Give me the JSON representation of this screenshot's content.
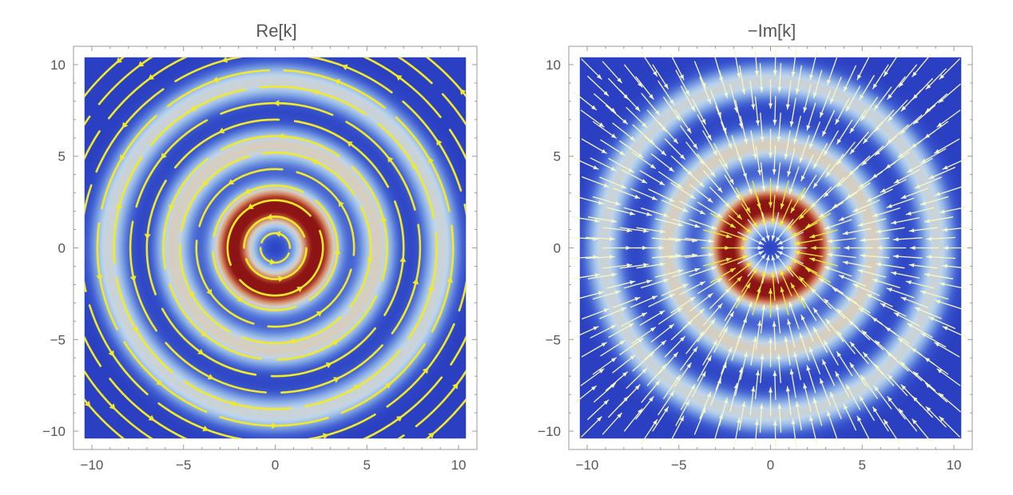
{
  "chart_data": [
    {
      "type": "heatmap",
      "subtype": "density-with-stream-field",
      "title": "Re[k]",
      "xlim": [
        -11,
        11
      ],
      "ylim": [
        -11,
        11
      ],
      "data_range": [
        -10.4,
        10.4
      ],
      "xticks": [
        -10,
        -5,
        0,
        5,
        10
      ],
      "yticks": [
        -10,
        -5,
        0,
        5,
        10
      ],
      "xtick_labels": [
        "−10",
        "−5",
        "0",
        "5",
        "10"
      ],
      "ytick_labels": [
        "−10",
        "−5",
        "0",
        "5",
        "10"
      ],
      "colormap": [
        "#2030b8",
        "#3c5ad0",
        "#7da2e2",
        "#bcd6ef",
        "#e6c9a0",
        "#c45a3a",
        "#8c1414"
      ],
      "ring_peaks_radius": [
        2.3,
        5.6,
        9.1
      ],
      "peak_intensities": [
        1.0,
        0.55,
        0.5
      ],
      "field": "streamlines, counter-clockwise circles",
      "field_color": "#f2ea28"
    },
    {
      "type": "heatmap",
      "subtype": "density-with-vector-field",
      "title": "−Im[k]",
      "xlim": [
        -11,
        11
      ],
      "ylim": [
        -11,
        11
      ],
      "data_range": [
        -10.4,
        10.4
      ],
      "xticks": [
        -10,
        -5,
        0,
        5,
        10
      ],
      "yticks": [
        -10,
        -5,
        0,
        5,
        10
      ],
      "xtick_labels": [
        "−10",
        "−5",
        "0",
        "5",
        "10"
      ],
      "ytick_labels": [
        "−10",
        "−5",
        "0",
        "5",
        "10"
      ],
      "colormap": [
        "#2030b8",
        "#3c5ad0",
        "#7da2e2",
        "#bcd6ef",
        "#e6c9a0",
        "#c45a3a",
        "#8c1414"
      ],
      "ring_peaks_radius": [
        2.3,
        5.6,
        9.1
      ],
      "peak_intensities": [
        1.0,
        0.55,
        0.5
      ],
      "field": "arrows, radially inward",
      "field_color": "#f4ec3c"
    }
  ]
}
